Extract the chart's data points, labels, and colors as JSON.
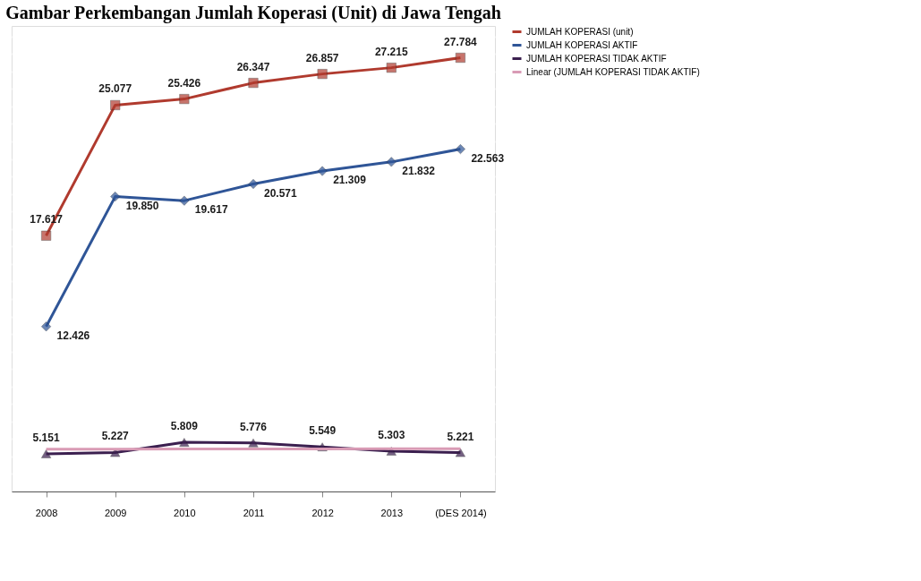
{
  "chart_data": {
    "type": "line",
    "title": "Gambar Perkembangan Jumlah Koperasi (Unit) di Jawa Tengah",
    "categories": [
      "2008",
      "2009",
      "2010",
      "2011",
      "2012",
      "2013",
      "(DES 2014)"
    ],
    "ylim": [
      3000,
      29600
    ],
    "tick_labels": "x",
    "grid": "y",
    "legend": "right",
    "series": [
      {
        "name": "JUMLAH KOPERASI (unit)",
        "color": "#b03a2e",
        "marker": "square",
        "values": [
          17617,
          25077,
          25426,
          26347,
          26857,
          27215,
          27784
        ],
        "value_labels": [
          "17.617",
          "25.077",
          "25.426",
          "26.347",
          "26.857",
          "27.215",
          "27.784"
        ]
      },
      {
        "name": "JUMLAH KOPERASI AKTIF",
        "color": "#2f5597",
        "marker": "diamond",
        "values": [
          12426,
          19850,
          19617,
          20571,
          21309,
          21832,
          22563
        ],
        "value_labels": [
          "12.426",
          "19.850",
          "19.617",
          "20.571",
          "21.309",
          "21.832",
          "22.563"
        ]
      },
      {
        "name": "JUMLAH KOPERASI TIDAK AKTIF",
        "color": "#3b1f4f",
        "marker": "triangle",
        "values": [
          5151,
          5227,
          5809,
          5776,
          5549,
          5303,
          5221
        ],
        "value_labels": [
          "5.151",
          "5.227",
          "5.809",
          "5.776",
          "5.549",
          "5.303",
          "5.221"
        ]
      },
      {
        "name": "Linear (JUMLAH KOPERASI TIDAK AKTIF)",
        "color": "#d99bb5",
        "marker": "none",
        "values": [
          5420,
          5423,
          5427,
          5430,
          5433,
          5437,
          5440
        ]
      }
    ]
  }
}
